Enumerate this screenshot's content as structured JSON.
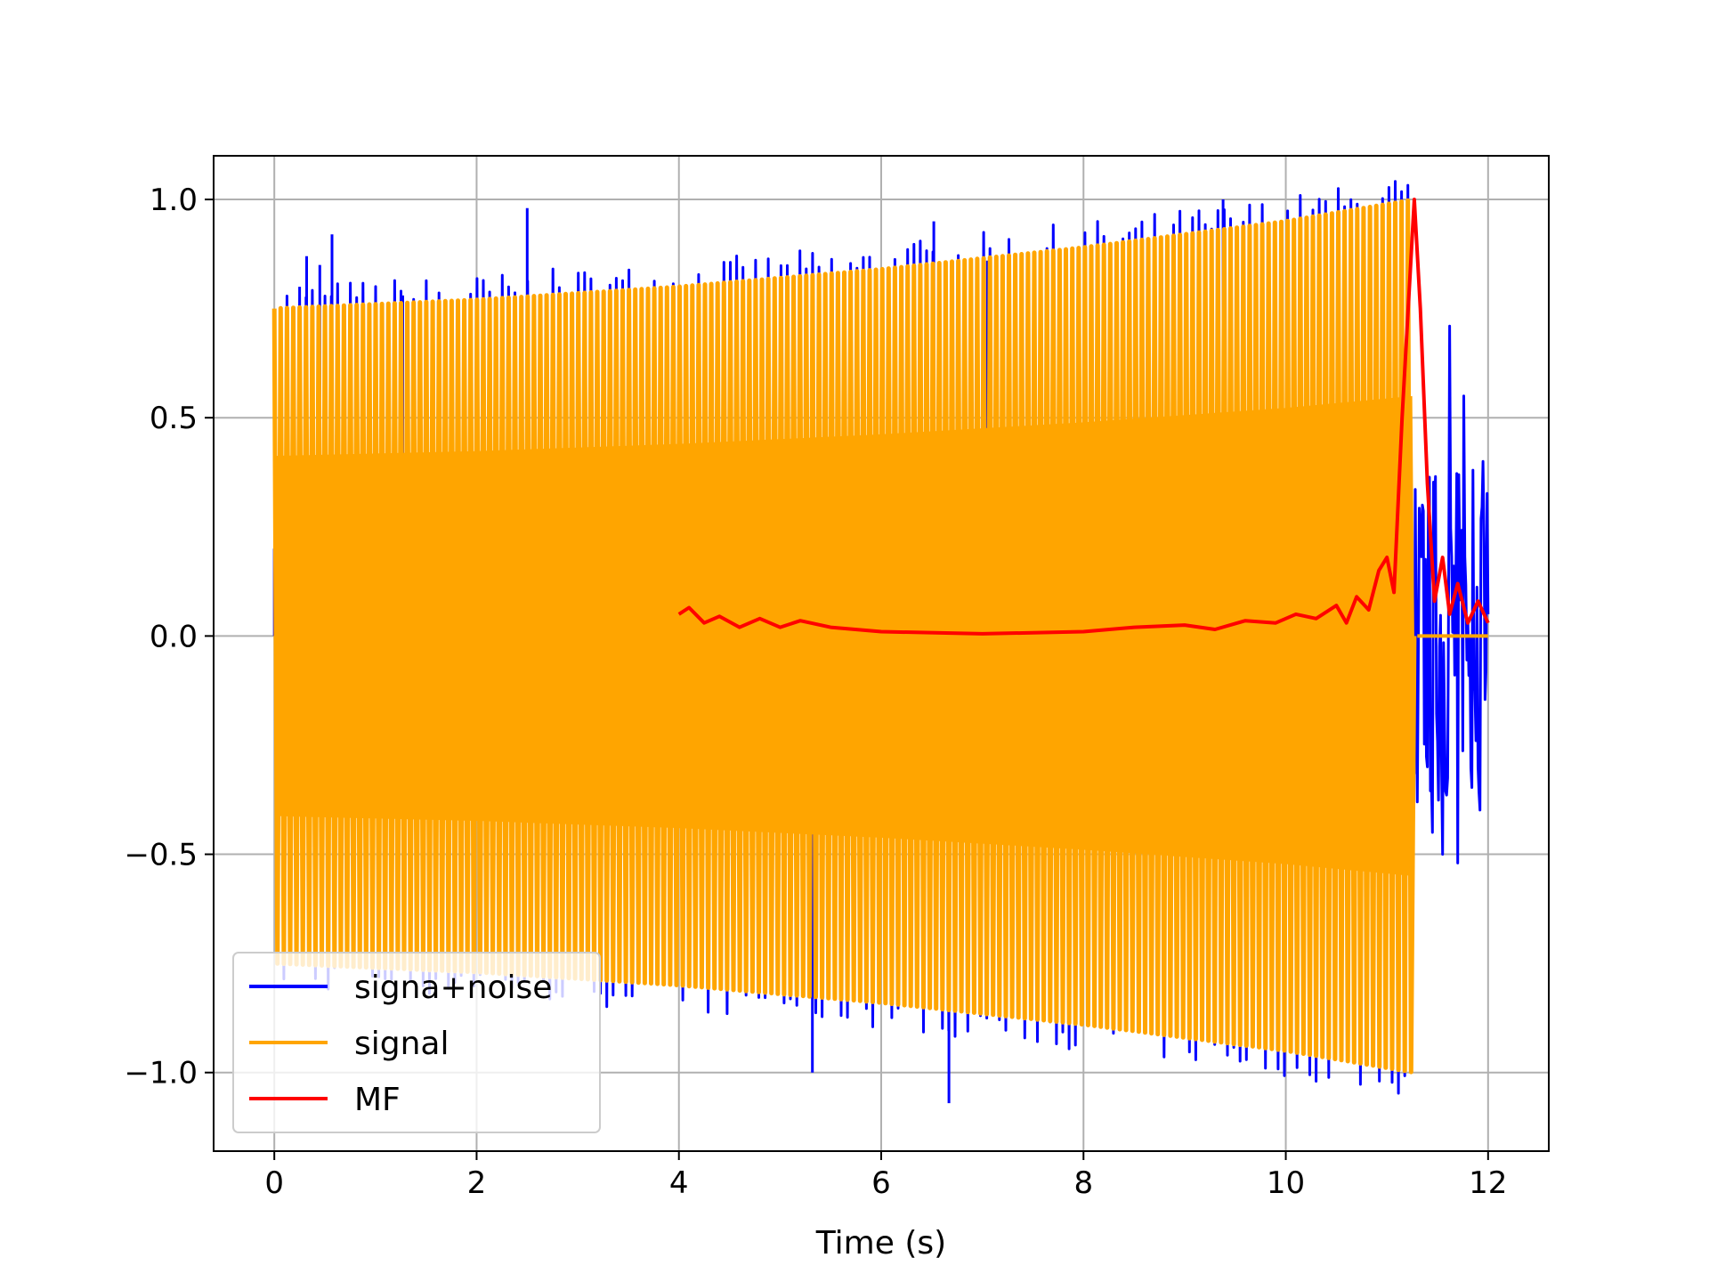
{
  "chart_data": {
    "type": "line",
    "title": "",
    "xlabel": "Time (s)",
    "ylabel": "",
    "xlim": [
      -0.6,
      12.6
    ],
    "ylim": [
      -1.18,
      1.1
    ],
    "x_ticks": [
      0,
      2,
      4,
      6,
      8,
      10,
      12
    ],
    "x_tick_labels": [
      "0",
      "2",
      "4",
      "6",
      "8",
      "10",
      "12"
    ],
    "y_ticks": [
      -1.0,
      -0.5,
      0.0,
      0.5,
      1.0
    ],
    "y_tick_labels": [
      "−1.0",
      "−0.5",
      "0.0",
      "0.5",
      "1.0"
    ],
    "grid": true,
    "legend_position": "lower-left",
    "series": [
      {
        "name": "signa+noise",
        "color": "#0000ff",
        "description": "noisy chirp; noise-only segment 11.27–12 s",
        "x": [
          0.0,
          0.25,
          0.32,
          0.45,
          0.57,
          1.27,
          2.5,
          5.32,
          6.52,
          6.67,
          7.05,
          9.38,
          10.42,
          11.3,
          11.35,
          11.45,
          11.55,
          11.62,
          11.7,
          11.76,
          11.85,
          11.95,
          12.0
        ],
        "y": [
          0.2,
          0.8,
          0.87,
          0.85,
          0.92,
          0.78,
          0.98,
          -1.0,
          0.95,
          -1.07,
          0.86,
          1.0,
          -0.97,
          -0.38,
          0.3,
          -0.45,
          -0.5,
          0.71,
          -0.52,
          0.55,
          0.38,
          0.4,
          0.05
        ]
      },
      {
        "name": "signal",
        "color": "#ffa500",
        "description": "chirp with linearly growing amplitude, 0–11.27 s, then zero",
        "x": [
          0.0,
          2.0,
          4.0,
          6.0,
          8.0,
          10.0,
          11.27,
          11.3,
          12.0
        ],
        "envelope": [
          0.75,
          0.77,
          0.8,
          0.84,
          0.89,
          0.95,
          1.0,
          0.0,
          0.0
        ]
      },
      {
        "name": "MF",
        "color": "#ff0000",
        "description": "matched-filter output, peak at 11.27 s",
        "x": [
          4.0,
          4.1,
          4.25,
          4.4,
          4.6,
          4.8,
          5.0,
          5.2,
          5.5,
          6.0,
          7.0,
          8.0,
          8.5,
          9.0,
          9.3,
          9.6,
          9.9,
          10.1,
          10.3,
          10.5,
          10.6,
          10.7,
          10.82,
          10.92,
          11.0,
          11.07,
          11.15,
          11.27,
          11.33,
          11.4,
          11.47,
          11.55,
          11.62,
          11.7,
          11.8,
          11.9,
          12.0
        ],
        "y": [
          0.05,
          0.065,
          0.03,
          0.045,
          0.02,
          0.04,
          0.02,
          0.035,
          0.02,
          0.01,
          0.005,
          0.01,
          0.02,
          0.025,
          0.015,
          0.035,
          0.03,
          0.05,
          0.04,
          0.07,
          0.03,
          0.09,
          0.06,
          0.15,
          0.18,
          0.1,
          0.5,
          1.0,
          0.75,
          0.35,
          0.08,
          0.18,
          0.05,
          0.12,
          0.03,
          0.08,
          0.03
        ]
      }
    ]
  }
}
